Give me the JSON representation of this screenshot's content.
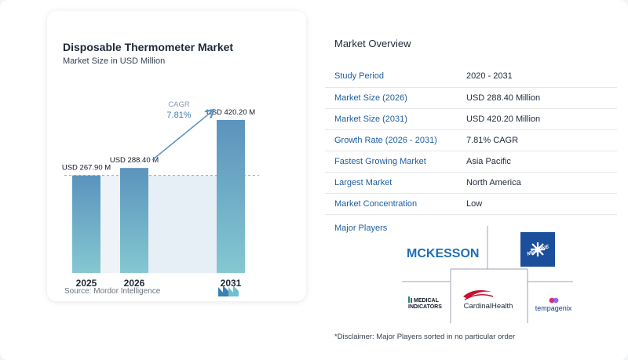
{
  "chart_data": {
    "type": "bar",
    "title": "Disposable Thermometer Market",
    "subtitle": "Market Size in USD Million",
    "categories": [
      "2025",
      "2026",
      "2031"
    ],
    "values": [
      267.9,
      288.4,
      420.2
    ],
    "value_labels": [
      "USD 267.90 M",
      "USD 288.40 M",
      "USD 420.20 M"
    ],
    "cagr_label": "CAGR",
    "cagr_value": "7.81%",
    "bar_color_top": "#5b93bd",
    "bar_color_bottom": "#84c8d1"
  },
  "source": "Source: Mordor Intelligence",
  "overview": {
    "title": "Market Overview",
    "rows": [
      {
        "key": "Study Period",
        "value": "2020 - 2031"
      },
      {
        "key": "Market Size (2026)",
        "value": "USD 288.40 Million"
      },
      {
        "key": "Market Size (2031)",
        "value": "USD 420.20 Million"
      },
      {
        "key": "Growth Rate (2026 - 2031)",
        "value": "7.81% CAGR"
      },
      {
        "key": "Fastest Growing Market",
        "value": "Asia Pacific"
      },
      {
        "key": "Largest Market",
        "value": "North America"
      },
      {
        "key": "Market Concentration",
        "value": "Low"
      }
    ],
    "players_title": "Major Players",
    "players": {
      "mckesson": "MCKESSON",
      "mckesson_c": "C",
      "medline": "MEDLINE",
      "medical_indicators_1": "MEDICAL",
      "medical_indicators_2": "INDICATORS",
      "cardinal": "CardinalHealth",
      "tempagenix": "tempagenix"
    },
    "disclaimer": "*Disclaimer: Major Players sorted in no particular order"
  }
}
